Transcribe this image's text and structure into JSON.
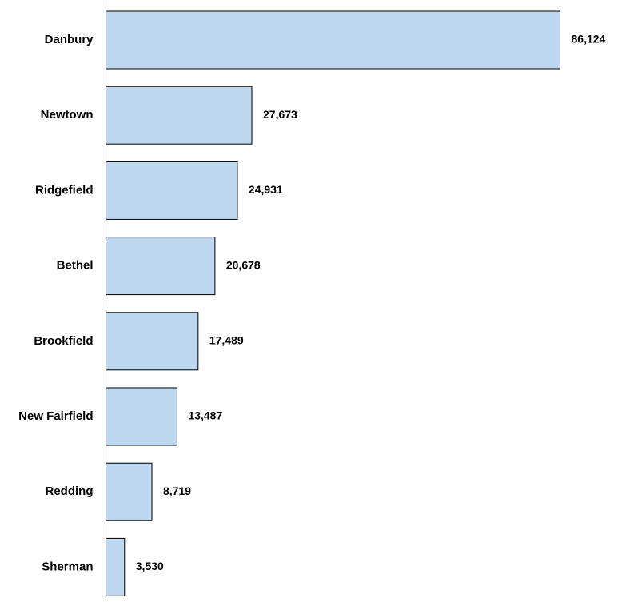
{
  "chart_data": {
    "type": "bar",
    "orientation": "horizontal",
    "categories": [
      "Danbury",
      "Newtown",
      "Ridgefield",
      "Bethel",
      "Brookfield",
      "New Fairfield",
      "Redding",
      "Sherman"
    ],
    "values": [
      86124,
      27673,
      24931,
      20678,
      17489,
      13487,
      8719,
      3530
    ],
    "value_labels": [
      "86,124",
      "27,673",
      "24,931",
      "20,678",
      "17,489",
      "13,487",
      "8,719",
      "3,530"
    ],
    "title": "",
    "xlabel": "",
    "ylabel": "",
    "xlim": [
      0,
      86124
    ],
    "grid": false,
    "legend": "none",
    "bar_color": "#bdd7ee",
    "bar_outline": "#000000"
  }
}
